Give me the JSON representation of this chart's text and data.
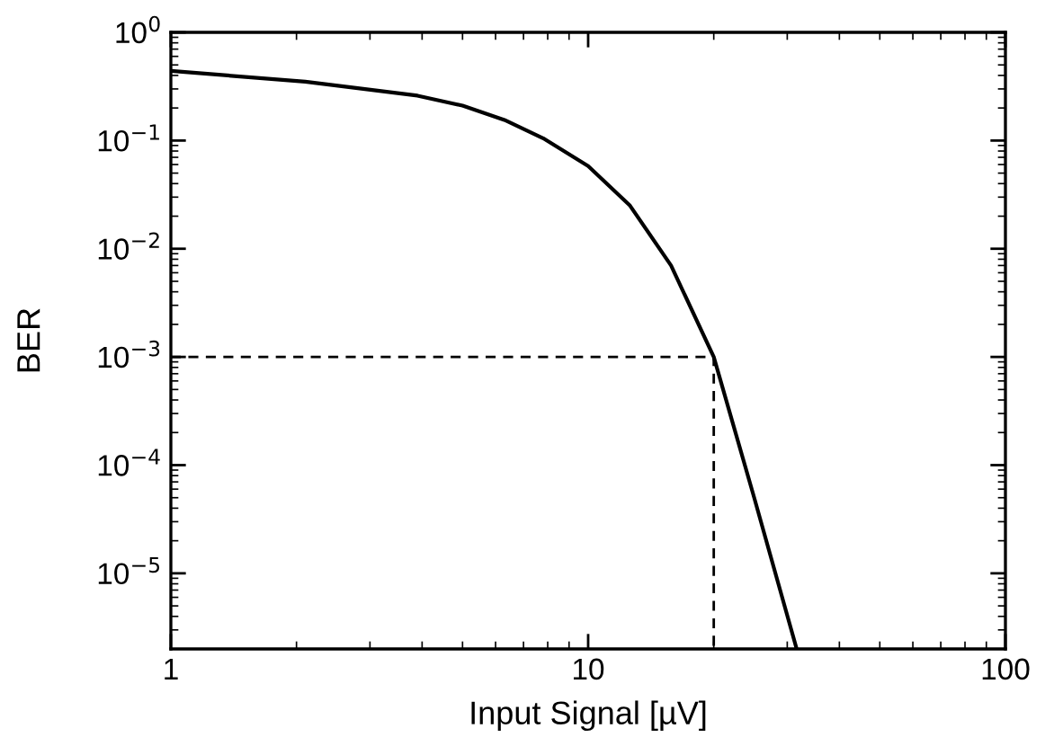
{
  "chart_data": {
    "type": "line",
    "xlabel": "Input Signal [µV]",
    "ylabel": "BER",
    "log": "xy",
    "marker": "none",
    "xlim": [
      1,
      100
    ],
    "xticks": [
      1,
      10,
      100
    ],
    "ylim": [
      2e-06,
      1
    ],
    "yticks": [
      {
        "value": 1,
        "label": "10$^{0}$"
      },
      {
        "value": 0.1,
        "label": "10$^{−1}$"
      },
      {
        "value": 0.01,
        "label": "10$^{−2}$"
      },
      {
        "value": 0.001,
        "label": "10$^{−3}$"
      },
      {
        "value": 0.0001,
        "label": "10$^{−4}$"
      },
      {
        "value": 1e-05,
        "label": "10$^{−5}$"
      }
    ],
    "series": [
      {
        "color": "#000000",
        "line_style": "solid",
        "x": [
          1,
          2.1,
          3.9,
          5,
          6.3,
          7.8,
          10,
          12.6,
          15.8,
          20,
          25,
          31.6
        ],
        "values": [
          0.44,
          0.35,
          0.26,
          0.21,
          0.155,
          0.105,
          0.058,
          0.025,
          0.007,
          0.001,
          5e-05,
          2e-06
        ]
      },
      {
        "color": "#000000",
        "line_style": "dashed",
        "x": [
          1,
          20,
          20
        ],
        "values": [
          0.001,
          0.001,
          2e-06
        ]
      }
    ]
  }
}
